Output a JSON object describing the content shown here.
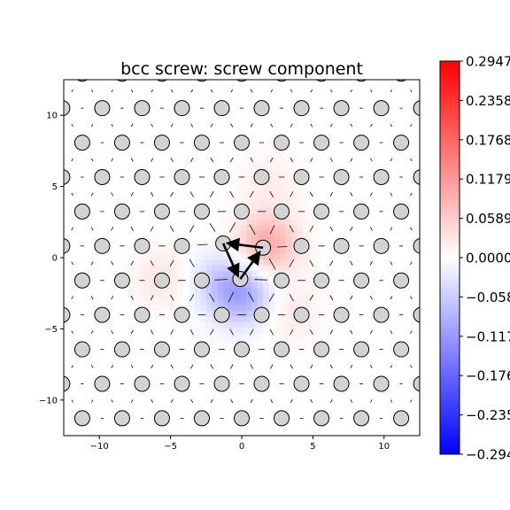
{
  "chart_data": {
    "type": "heatmap",
    "title": "bcc screw: screw component",
    "xlabel": "",
    "ylabel": "",
    "xlim": [
      -12.5,
      12.5
    ],
    "ylim": [
      -12.5,
      12.5
    ],
    "x_ticks": [
      -10,
      -5,
      0,
      5,
      10
    ],
    "y_ticks": [
      -10,
      -5,
      0,
      5,
      10
    ],
    "x_tick_labels": [
      "−10",
      "−5",
      "0",
      "5",
      "10"
    ],
    "y_tick_labels": [
      "−10",
      "−5",
      "0",
      "5",
      "10"
    ],
    "grid": false,
    "atom_lattice": {
      "origin": [
        0,
        -1.6
      ],
      "a1": [
        2.8,
        0
      ],
      "a2": [
        1.4,
        2.42
      ]
    },
    "core_atoms": [
      [
        -1.3,
        1.0
      ],
      [
        1.5,
        0.7
      ],
      [
        -0.1,
        -1.5
      ]
    ],
    "displacement_arrows": [
      {
        "from": [
          1.5,
          0.7
        ],
        "to": [
          -0.9,
          1.0
        ]
      },
      {
        "from": [
          -0.1,
          -1.5
        ],
        "to": [
          1.2,
          0.3
        ]
      },
      {
        "from": [
          -1.3,
          1.0
        ],
        "to": [
          -0.3,
          -1.2
        ]
      }
    ],
    "field_lobes": [
      {
        "x": 1.8,
        "y": 1.0,
        "value": 0.1
      },
      {
        "x": 0.0,
        "y": -2.6,
        "value": -0.1
      },
      {
        "x": -1.8,
        "y": -1.5,
        "value": -0.04
      },
      {
        "x": -5.5,
        "y": -1.4,
        "value": 0.03
      },
      {
        "x": 3.5,
        "y": -3.8,
        "value": 0.025
      },
      {
        "x": 2.0,
        "y": 5.2,
        "value": 0.02
      }
    ],
    "colorbar": {
      "min": -0.2947,
      "max": 0.2947,
      "colormap": "bwr",
      "ticks": [
        0.2947,
        0.2358,
        0.1768,
        0.1179,
        0.0589,
        0.0,
        -0.0589,
        -0.1179,
        -0.1768,
        -0.2358,
        -0.2947
      ],
      "tick_labels": [
        "0.2947",
        "0.2358",
        "0.1768",
        "0.1179",
        "0.0589",
        "0.0000",
        "−0.0589",
        "−0.1179",
        "−0.1768",
        "−0.2358",
        "−0.2947"
      ]
    },
    "colors": {
      "atom_fill": "#d3d3d3",
      "atom_edge": "#000000",
      "arrow": "#000000",
      "max_color": "#ff0000",
      "mid_color": "#ffffff",
      "min_color": "#0000ff"
    }
  }
}
